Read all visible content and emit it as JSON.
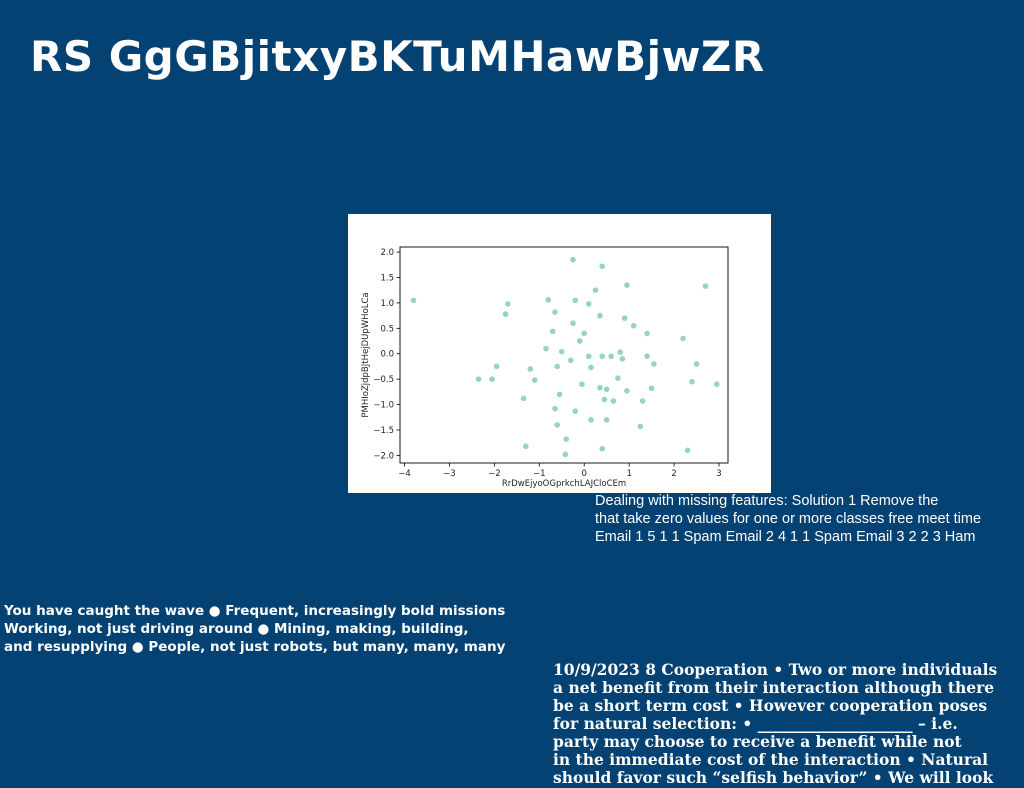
{
  "slide": {
    "title": "RS GgGBjitxyBKTuMHawBjwZR",
    "text_a": [
      "Dealing with missing features: Solution 1 Remove the",
      "that take zero values for one or more classes free meet time",
      "Email 1 5 1 1 Spam Email 2 4 1 1 Spam Email 3 2 2 3 Ham"
    ],
    "text_b": [
      "You have caught the wave ● Frequent, increasingly bold missions",
      "Working, not just driving around ● Mining, making, building,",
      "and resupplying ● People, not just robots, but many, many, many"
    ],
    "text_c": [
      "10/9/2023 8 Cooperation • Two or more individuals",
      "a net benefit from their interaction although there",
      "be a short term cost • However cooperation poses",
      "for natural selection: • ____________________ – i.e.",
      "party may choose to receive a benefit while not",
      "in the immediate cost of the interaction • Natural",
      "should favor such “selfish behavior” • We will look"
    ]
  },
  "chart_data": {
    "type": "scatter",
    "xlabel": "RrDwEjyoOGprkchLAJCloCEm",
    "ylabel": "PMHIoZjdpBJtHejDUpWHoLCa",
    "xlim": [
      -4.1,
      3.2
    ],
    "ylim": [
      -2.15,
      2.1
    ],
    "xticks": [
      -4,
      -3,
      -2,
      -1,
      0,
      1,
      2,
      3
    ],
    "yticks": [
      -2.0,
      -1.5,
      -1.0,
      -0.5,
      0.0,
      0.5,
      1.0,
      1.5,
      2.0
    ],
    "grid": false,
    "marker_color": "#66c2a5",
    "points": [
      [
        -3.8,
        1.05
      ],
      [
        -1.7,
        0.98
      ],
      [
        -1.75,
        0.78
      ],
      [
        -0.8,
        1.06
      ],
      [
        -0.25,
        1.85
      ],
      [
        0.4,
        1.72
      ],
      [
        0.25,
        1.25
      ],
      [
        0.1,
        0.98
      ],
      [
        -0.2,
        1.05
      ],
      [
        0.95,
        1.35
      ],
      [
        2.7,
        1.33
      ],
      [
        -0.65,
        0.82
      ],
      [
        -0.25,
        0.6
      ],
      [
        0.35,
        0.75
      ],
      [
        0.9,
        0.7
      ],
      [
        1.1,
        0.55
      ],
      [
        1.4,
        0.4
      ],
      [
        -0.7,
        0.44
      ],
      [
        0.0,
        0.4
      ],
      [
        -0.1,
        0.25
      ],
      [
        2.2,
        0.3
      ],
      [
        -0.85,
        0.1
      ],
      [
        -0.5,
        0.04
      ],
      [
        -0.3,
        -0.13
      ],
      [
        0.1,
        -0.05
      ],
      [
        0.4,
        -0.05
      ],
      [
        0.6,
        -0.05
      ],
      [
        0.8,
        0.03
      ],
      [
        0.85,
        -0.1
      ],
      [
        0.15,
        -0.27
      ],
      [
        1.4,
        -0.05
      ],
      [
        1.55,
        -0.2
      ],
      [
        2.5,
        -0.2
      ],
      [
        -0.6,
        -0.25
      ],
      [
        -1.2,
        -0.3
      ],
      [
        -1.1,
        -0.52
      ],
      [
        -1.95,
        -0.25
      ],
      [
        -2.05,
        -0.5
      ],
      [
        -2.35,
        -0.5
      ],
      [
        -0.05,
        -0.6
      ],
      [
        0.75,
        -0.48
      ],
      [
        0.35,
        -0.67
      ],
      [
        0.5,
        -0.7
      ],
      [
        0.95,
        -0.73
      ],
      [
        1.5,
        -0.68
      ],
      [
        2.4,
        -0.55
      ],
      [
        2.95,
        -0.6
      ],
      [
        -0.55,
        -0.8
      ],
      [
        -1.35,
        -0.88
      ],
      [
        -0.65,
        -1.08
      ],
      [
        -0.2,
        -1.13
      ],
      [
        0.45,
        -0.9
      ],
      [
        0.65,
        -0.93
      ],
      [
        1.3,
        -0.93
      ],
      [
        0.15,
        -1.3
      ],
      [
        0.5,
        -1.3
      ],
      [
        -0.6,
        -1.4
      ],
      [
        1.25,
        -1.43
      ],
      [
        -0.4,
        -1.68
      ],
      [
        -1.3,
        -1.82
      ],
      [
        0.4,
        -1.87
      ],
      [
        2.3,
        -1.9
      ],
      [
        -0.42,
        -1.98
      ]
    ]
  }
}
